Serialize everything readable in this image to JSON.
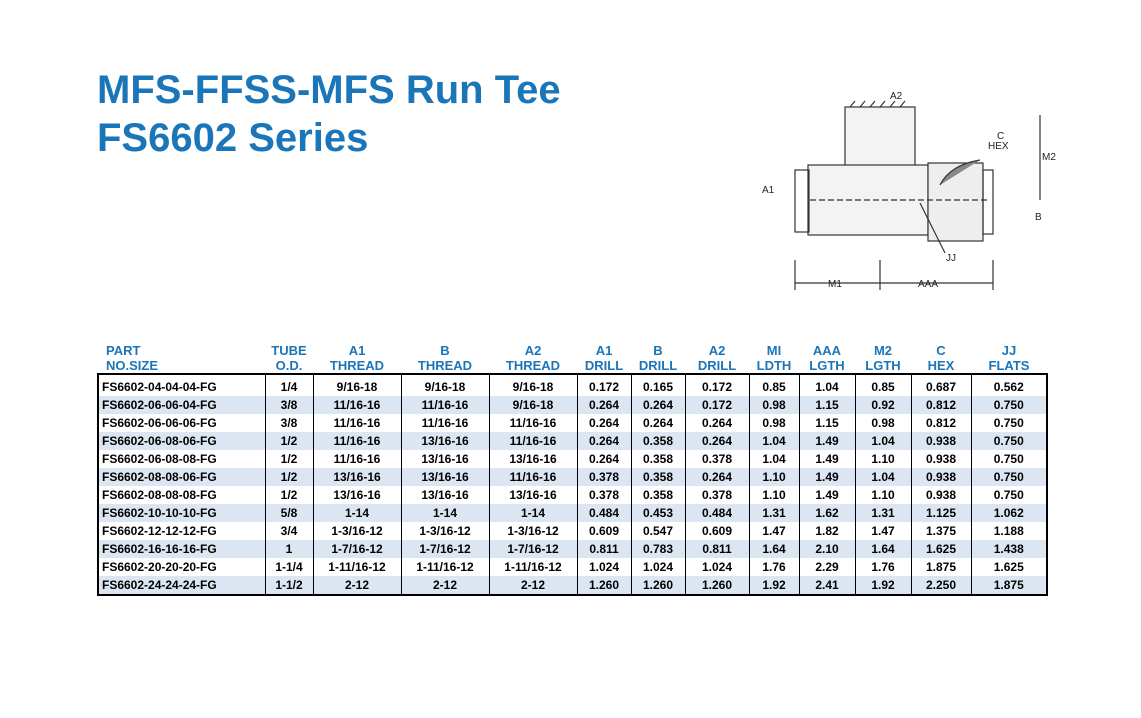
{
  "header": {
    "title": "MFS-FFSS-MFS Run Tee",
    "subtitle": "FS6602 Series"
  },
  "diagram": {
    "labels": [
      "A2",
      "C",
      "HEX",
      "M2",
      "A1",
      "B",
      "JJ",
      "M1",
      "AAA"
    ]
  },
  "table": {
    "columns": [
      [
        "PART",
        "NO.SIZE"
      ],
      [
        "TUBE",
        "O.D."
      ],
      [
        "A1",
        "THREAD"
      ],
      [
        "B",
        "THREAD"
      ],
      [
        "A2",
        "THREAD"
      ],
      [
        "A1",
        "DRILL"
      ],
      [
        "B",
        "DRILL"
      ],
      [
        "A2",
        "DRILL"
      ],
      [
        "MI",
        "LDTH"
      ],
      [
        "AAA",
        "LGTH"
      ],
      [
        "M2",
        "LGTH"
      ],
      [
        "C",
        "HEX"
      ],
      [
        "JJ",
        "FLATS"
      ]
    ],
    "rows": [
      [
        "FS6602-04-04-04-FG",
        "1/4",
        "9/16-18",
        "9/16-18",
        "9/16-18",
        "0.172",
        "0.165",
        "0.172",
        "0.85",
        "1.04",
        "0.85",
        "0.687",
        "0.562"
      ],
      [
        "FS6602-06-06-04-FG",
        "3/8",
        "11/16-16",
        "11/16-16",
        "9/16-18",
        "0.264",
        "0.264",
        "0.172",
        "0.98",
        "1.15",
        "0.92",
        "0.812",
        "0.750"
      ],
      [
        "FS6602-06-06-06-FG",
        "3/8",
        "11/16-16",
        "11/16-16",
        "11/16-16",
        "0.264",
        "0.264",
        "0.264",
        "0.98",
        "1.15",
        "0.98",
        "0.812",
        "0.750"
      ],
      [
        "FS6602-06-08-06-FG",
        "1/2",
        "11/16-16",
        "13/16-16",
        "11/16-16",
        "0.264",
        "0.358",
        "0.264",
        "1.04",
        "1.49",
        "1.04",
        "0.938",
        "0.750"
      ],
      [
        "FS6602-06-08-08-FG",
        "1/2",
        "11/16-16",
        "13/16-16",
        "13/16-16",
        "0.264",
        "0.358",
        "0.378",
        "1.04",
        "1.49",
        "1.10",
        "0.938",
        "0.750"
      ],
      [
        "FS6602-08-08-06-FG",
        "1/2",
        "13/16-16",
        "13/16-16",
        "11/16-16",
        "0.378",
        "0.358",
        "0.264",
        "1.10",
        "1.49",
        "1.04",
        "0.938",
        "0.750"
      ],
      [
        "FS6602-08-08-08-FG",
        "1/2",
        "13/16-16",
        "13/16-16",
        "13/16-16",
        "0.378",
        "0.358",
        "0.378",
        "1.10",
        "1.49",
        "1.10",
        "0.938",
        "0.750"
      ],
      [
        "FS6602-10-10-10-FG",
        "5/8",
        "1-14",
        "1-14",
        "1-14",
        "0.484",
        "0.453",
        "0.484",
        "1.31",
        "1.62",
        "1.31",
        "1.125",
        "1.062"
      ],
      [
        "FS6602-12-12-12-FG",
        "3/4",
        "1-3/16-12",
        "1-3/16-12",
        "1-3/16-12",
        "0.609",
        "0.547",
        "0.609",
        "1.47",
        "1.82",
        "1.47",
        "1.375",
        "1.188"
      ],
      [
        "FS6602-16-16-16-FG",
        "1",
        "1-7/16-12",
        "1-7/16-12",
        "1-7/16-12",
        "0.811",
        "0.783",
        "0.811",
        "1.64",
        "2.10",
        "1.64",
        "1.625",
        "1.438"
      ],
      [
        "FS6602-20-20-20-FG",
        "1-1/4",
        "1-11/16-12",
        "1-11/16-12",
        "1-11/16-12",
        "1.024",
        "1.024",
        "1.024",
        "1.76",
        "2.29",
        "1.76",
        "1.875",
        "1.625"
      ],
      [
        "FS6602-24-24-24-FG",
        "1-1/2",
        "2-12",
        "2-12",
        "2-12",
        "1.260",
        "1.260",
        "1.260",
        "1.92",
        "2.41",
        "1.92",
        "2.250",
        "1.875"
      ]
    ]
  }
}
